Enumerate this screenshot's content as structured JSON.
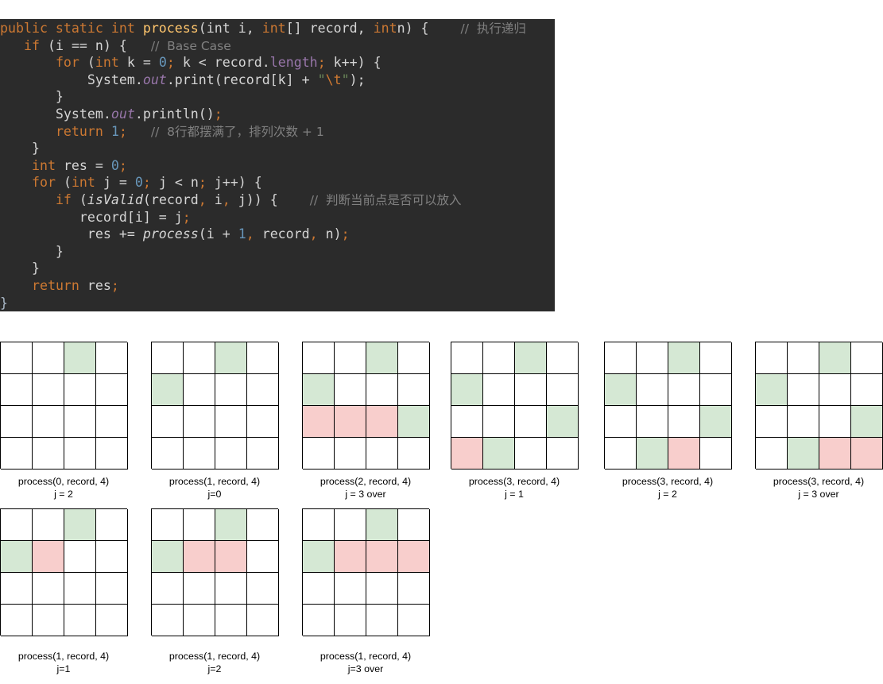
{
  "code": {
    "lines": [
      [
        [
          "kw",
          "public static int "
        ],
        [
          "fn",
          "process"
        ],
        [
          "",
          "(int i, "
        ],
        [
          "kw",
          "int"
        ],
        [
          "",
          "[] record, "
        ],
        [
          "kw",
          "int"
        ],
        [
          "",
          "n) {    "
        ],
        [
          "cm",
          "//  执行递归"
        ]
      ],
      [
        [
          "",
          "   "
        ],
        [
          "kw",
          "if "
        ],
        [
          "",
          "(i == n) {   "
        ],
        [
          "cm",
          "//  Base Case"
        ]
      ],
      [
        [
          "",
          "       "
        ],
        [
          "kw",
          "for "
        ],
        [
          "",
          "("
        ],
        [
          "kw",
          "int "
        ],
        [
          "",
          "k = "
        ],
        [
          "num",
          "0"
        ],
        [
          "pu",
          "; "
        ],
        [
          "",
          "k < record."
        ],
        [
          "prop",
          "length"
        ],
        [
          "pu",
          "; "
        ],
        [
          "",
          "k++) {"
        ]
      ],
      [
        [
          "",
          "           System."
        ],
        [
          "fld",
          "out"
        ],
        [
          "",
          ".print(record[k] + "
        ],
        [
          "str",
          "\""
        ],
        [
          "esc",
          "\\t"
        ],
        [
          "str",
          "\""
        ],
        [
          "",
          ");"
        ]
      ],
      [
        [
          "",
          "       }"
        ]
      ],
      [
        [
          "",
          "       System."
        ],
        [
          "fld",
          "out"
        ],
        [
          "",
          ".println()"
        ],
        [
          "pu",
          ";"
        ]
      ],
      [
        [
          "",
          "       "
        ],
        [
          "kw",
          "return "
        ],
        [
          "num",
          "1"
        ],
        [
          "pu",
          ";   "
        ],
        [
          "cm",
          "//  8行都摆满了，排列次数 + 1"
        ]
      ],
      [
        [
          "",
          "    }"
        ]
      ],
      [
        [
          "",
          "    "
        ],
        [
          "kw",
          "int "
        ],
        [
          "",
          "res = "
        ],
        [
          "num",
          "0"
        ],
        [
          "pu",
          ";"
        ]
      ],
      [
        [
          "",
          "    "
        ],
        [
          "kw",
          "for "
        ],
        [
          "",
          "("
        ],
        [
          "kw",
          "int "
        ],
        [
          "",
          "j = "
        ],
        [
          "num",
          "0"
        ],
        [
          "pu",
          "; "
        ],
        [
          "",
          "j < n"
        ],
        [
          "pu",
          "; "
        ],
        [
          "",
          "j++) {"
        ]
      ],
      [
        [
          "",
          "       "
        ],
        [
          "kw",
          "if "
        ],
        [
          "",
          "("
        ],
        [
          "it",
          "isValid"
        ],
        [
          "",
          "(record"
        ],
        [
          "pu",
          ", "
        ],
        [
          "",
          "i"
        ],
        [
          "pu",
          ", "
        ],
        [
          "",
          "j)) {    "
        ],
        [
          "cm",
          "//  判断当前点是否可以放入"
        ]
      ],
      [
        [
          "",
          "          record[i] = j"
        ],
        [
          "pu",
          ";"
        ]
      ],
      [
        [
          "",
          "           res += "
        ],
        [
          "it",
          "process"
        ],
        [
          "",
          "(i + "
        ],
        [
          "num",
          "1"
        ],
        [
          "pu",
          ", "
        ],
        [
          "",
          "record"
        ],
        [
          "pu",
          ", "
        ],
        [
          "",
          "n)"
        ],
        [
          "pu",
          ";"
        ]
      ],
      [
        [
          "",
          "       }"
        ]
      ],
      [
        [
          "",
          "    }"
        ]
      ],
      [
        [
          "",
          "    "
        ],
        [
          "kw",
          "return "
        ],
        [
          "",
          "res"
        ],
        [
          "pu",
          ";"
        ]
      ],
      [
        [
          "br",
          "}"
        ]
      ]
    ]
  },
  "boards": [
    {
      "cells": [
        [
          0,
          0,
          1,
          0
        ],
        [
          0,
          0,
          0,
          0
        ],
        [
          0,
          0,
          0,
          0
        ],
        [
          0,
          0,
          0,
          0
        ]
      ],
      "caption_line1": "process(0, record, 4)",
      "caption_line2": "j = 2"
    },
    {
      "cells": [
        [
          0,
          0,
          1,
          0
        ],
        [
          1,
          0,
          0,
          0
        ],
        [
          0,
          0,
          0,
          0
        ],
        [
          0,
          0,
          0,
          0
        ]
      ],
      "caption_line1": "process(1, record, 4)",
      "caption_line2": "j=0"
    },
    {
      "cells": [
        [
          0,
          0,
          1,
          0
        ],
        [
          1,
          0,
          0,
          0
        ],
        [
          2,
          2,
          2,
          1
        ],
        [
          0,
          0,
          0,
          0
        ]
      ],
      "caption_line1": "process(2, record, 4)",
      "caption_line2": "j = 3 over"
    },
    {
      "cells": [
        [
          0,
          0,
          1,
          0
        ],
        [
          1,
          0,
          0,
          0
        ],
        [
          0,
          0,
          0,
          1
        ],
        [
          2,
          1,
          0,
          0
        ]
      ],
      "caption_line1": "process(3, record, 4)",
      "caption_line2": "j = 1"
    },
    {
      "cells": [
        [
          0,
          0,
          1,
          0
        ],
        [
          1,
          0,
          0,
          0
        ],
        [
          0,
          0,
          0,
          1
        ],
        [
          0,
          1,
          2,
          0
        ]
      ],
      "caption_line1": "process(3, record, 4)",
      "caption_line2": "j = 2"
    },
    {
      "cells": [
        [
          0,
          0,
          1,
          0
        ],
        [
          1,
          0,
          0,
          0
        ],
        [
          0,
          0,
          0,
          1
        ],
        [
          0,
          1,
          2,
          2
        ]
      ],
      "caption_line1": "process(3, record, 4)",
      "caption_line2": "j = 3 over"
    },
    {
      "cells": [
        [
          0,
          0,
          1,
          0
        ],
        [
          1,
          2,
          0,
          0
        ],
        [
          0,
          0,
          0,
          0
        ],
        [
          0,
          0,
          0,
          0
        ]
      ],
      "caption_line1": "process(1, record, 4)",
      "caption_line2": "j=1"
    },
    {
      "cells": [
        [
          0,
          0,
          1,
          0
        ],
        [
          1,
          2,
          2,
          0
        ],
        [
          0,
          0,
          0,
          0
        ],
        [
          0,
          0,
          0,
          0
        ]
      ],
      "caption_line1": "process(1, record, 4)",
      "caption_line2": "j=2"
    },
    {
      "cells": [
        [
          0,
          0,
          1,
          0
        ],
        [
          1,
          2,
          2,
          2
        ],
        [
          0,
          0,
          0,
          0
        ],
        [
          0,
          0,
          0,
          0
        ]
      ],
      "caption_line1": "process(1, record, 4)",
      "caption_line2": "j=3 over"
    }
  ]
}
